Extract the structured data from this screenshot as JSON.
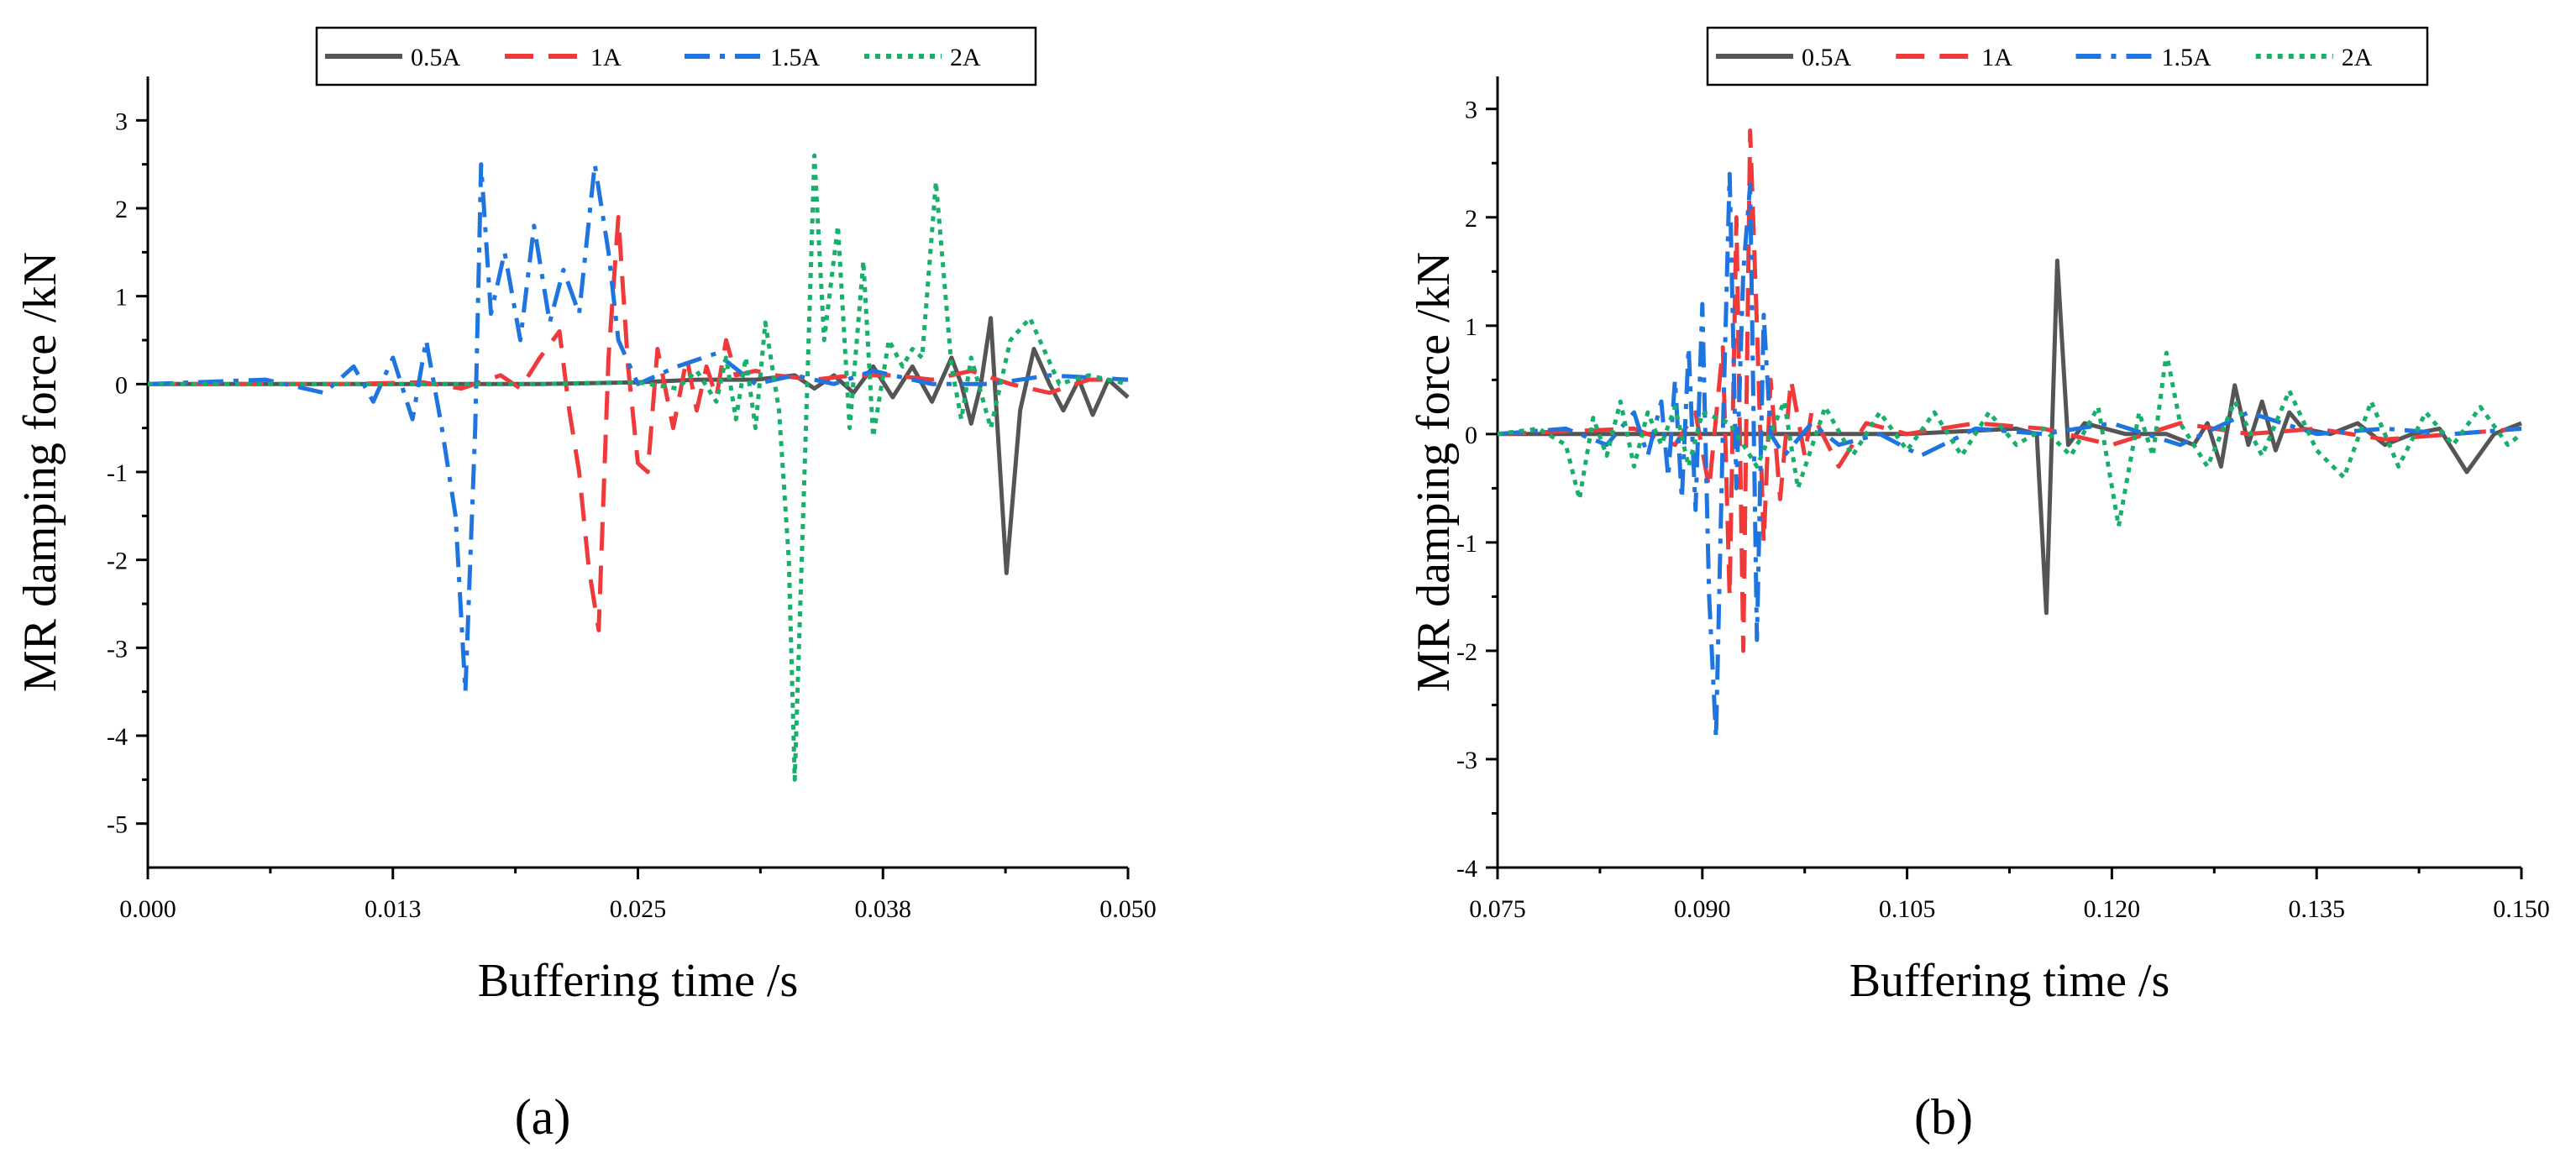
{
  "figure": {
    "panel_labels": [
      "(a)",
      "(b)"
    ]
  },
  "series_style": [
    {
      "name": "0.5A",
      "color": "#555555",
      "dash": "solid"
    },
    {
      "name": "1A",
      "color": "#f0393b",
      "dash": "dashed"
    },
    {
      "name": "1.5A",
      "color": "#1f75e0",
      "dash": "dash-dot"
    },
    {
      "name": "2A",
      "color": "#16b06a",
      "dash": "dotted"
    }
  ],
  "chart_data": [
    {
      "type": "line",
      "title": "",
      "panel": "(a)",
      "xlabel": "Buffering time /s",
      "ylabel": "MR damping force /kN",
      "xlim": [
        0.0,
        0.05
      ],
      "ylim": [
        -5.5,
        3.5
      ],
      "xticks": [
        0.0,
        0.0125,
        0.025,
        0.0375,
        0.05
      ],
      "xtick_labels": [
        "0.000",
        "0.013",
        "0.025",
        "0.038",
        "0.050"
      ],
      "yticks": [
        -5,
        -4,
        -3,
        -2,
        -1,
        0,
        1,
        2,
        3
      ],
      "ytick_labels": [
        "-5",
        "-4",
        "-3",
        "-2",
        "-1",
        "0",
        "1",
        "2",
        "3"
      ],
      "legend": [
        "0.5A",
        "1A",
        "1.5A",
        "2A"
      ],
      "legend_position": "top-center",
      "series": [
        {
          "name": "0.5A",
          "x": [
            0.0,
            0.005,
            0.01,
            0.015,
            0.02,
            0.025,
            0.028,
            0.031,
            0.033,
            0.034,
            0.035,
            0.036,
            0.037,
            0.038,
            0.039,
            0.04,
            0.041,
            0.0415,
            0.042,
            0.0425,
            0.043,
            0.0438,
            0.0445,
            0.0452,
            0.046,
            0.0467,
            0.0475,
            0.0482,
            0.049,
            0.05
          ],
          "y": [
            0,
            0,
            0,
            0,
            0,
            0.02,
            0.05,
            0.05,
            0.1,
            -0.05,
            0.1,
            -0.1,
            0.2,
            -0.15,
            0.2,
            -0.2,
            0.3,
            0.0,
            -0.45,
            0.0,
            0.75,
            -2.15,
            -0.3,
            0.4,
            0.0,
            -0.3,
            0.05,
            -0.35,
            0.05,
            -0.15
          ]
        },
        {
          "name": "1A",
          "x": [
            0.0,
            0.01,
            0.014,
            0.016,
            0.018,
            0.019,
            0.02,
            0.021,
            0.0215,
            0.022,
            0.0225,
            0.023,
            0.0235,
            0.024,
            0.0245,
            0.025,
            0.0255,
            0.026,
            0.0268,
            0.0275,
            0.028,
            0.0285,
            0.029,
            0.0295,
            0.03,
            0.031,
            0.032,
            0.034,
            0.036,
            0.038,
            0.04,
            0.042,
            0.044,
            0.046,
            0.048,
            0.05
          ],
          "y": [
            0,
            0,
            0.02,
            -0.05,
            0.1,
            -0.05,
            0.3,
            0.6,
            -0.3,
            -1.0,
            -2.1,
            -2.8,
            0.3,
            1.9,
            0.2,
            -0.9,
            -1.0,
            0.4,
            -0.5,
            0.3,
            -0.3,
            0.2,
            -0.15,
            0.5,
            0.1,
            0.15,
            0.1,
            0.05,
            0.1,
            0.1,
            0.05,
            0.15,
            0.0,
            -0.1,
            0.05,
            0.05
          ]
        },
        {
          "name": "1.5A",
          "x": [
            0.0,
            0.006,
            0.009,
            0.0105,
            0.0115,
            0.0125,
            0.0135,
            0.0142,
            0.015,
            0.0157,
            0.0162,
            0.0167,
            0.017,
            0.0175,
            0.0182,
            0.019,
            0.0197,
            0.0205,
            0.0212,
            0.022,
            0.0228,
            0.0235,
            0.024,
            0.025,
            0.027,
            0.029,
            0.031,
            0.033,
            0.035,
            0.037,
            0.04,
            0.043,
            0.046,
            0.05
          ],
          "y": [
            0,
            0.05,
            -0.1,
            0.2,
            -0.2,
            0.3,
            -0.4,
            0.5,
            -0.5,
            -1.5,
            -3.5,
            -0.5,
            2.5,
            0.8,
            1.5,
            0.5,
            1.8,
            0.7,
            1.3,
            0.8,
            2.5,
            1.5,
            0.5,
            0.0,
            0.2,
            0.35,
            0.0,
            0.1,
            0.0,
            0.15,
            0.0,
            0.0,
            0.1,
            0.05
          ]
        },
        {
          "name": "2A",
          "x": [
            0.0,
            0.01,
            0.02,
            0.025,
            0.027,
            0.028,
            0.029,
            0.0295,
            0.03,
            0.0305,
            0.031,
            0.0315,
            0.0322,
            0.0327,
            0.033,
            0.0335,
            0.034,
            0.0345,
            0.0352,
            0.0358,
            0.0365,
            0.037,
            0.0378,
            0.0385,
            0.039,
            0.0395,
            0.0402,
            0.041,
            0.0415,
            0.042,
            0.043,
            0.044,
            0.045,
            0.0465,
            0.048,
            0.05
          ],
          "y": [
            0,
            0,
            0,
            0.02,
            -0.05,
            0.15,
            -0.2,
            0.3,
            -0.4,
            0.3,
            -0.5,
            0.7,
            -0.3,
            -2.0,
            -4.5,
            -1.0,
            2.6,
            0.5,
            1.8,
            -0.5,
            1.4,
            -0.6,
            0.5,
            0.2,
            0.4,
            0.3,
            2.3,
            0.2,
            -0.4,
            0.3,
            -0.5,
            0.5,
            0.75,
            0.0,
            0.1,
            0.0
          ]
        }
      ]
    },
    {
      "type": "line",
      "title": "",
      "panel": "(b)",
      "xlabel": "Buffering time /s",
      "ylabel": "MR damping force /kN",
      "xlim": [
        0.075,
        0.15
      ],
      "ylim": [
        -4,
        3.3
      ],
      "xticks": [
        0.075,
        0.09,
        0.105,
        0.12,
        0.135,
        0.15
      ],
      "xtick_labels": [
        "0.075",
        "0.090",
        "0.105",
        "0.120",
        "0.135",
        "0.150"
      ],
      "yticks": [
        -4,
        -3,
        -2,
        -1,
        0,
        1,
        2,
        3
      ],
      "ytick_labels": [
        "-4",
        "-3",
        "-2",
        "-1",
        "0",
        "1",
        "2",
        "3"
      ],
      "legend": [
        "0.5A",
        "1A",
        "1.5A",
        "2A"
      ],
      "legend_position": "top-center",
      "series": [
        {
          "name": "0.5A",
          "x": [
            0.075,
            0.085,
            0.095,
            0.105,
            0.113,
            0.1145,
            0.1152,
            0.116,
            0.1168,
            0.118,
            0.121,
            0.124,
            0.126,
            0.127,
            0.128,
            0.129,
            0.13,
            0.131,
            0.132,
            0.133,
            0.134,
            0.136,
            0.138,
            0.14,
            0.142,
            0.144,
            0.146,
            0.148,
            0.15
          ],
          "y": [
            0,
            0,
            0,
            0,
            0.05,
            0.0,
            -1.65,
            1.6,
            -0.1,
            0.1,
            0.0,
            0.0,
            -0.1,
            0.1,
            -0.3,
            0.45,
            -0.1,
            0.3,
            -0.15,
            0.2,
            0.05,
            0.0,
            0.1,
            -0.1,
            0.0,
            0.05,
            -0.35,
            0.0,
            0.1
          ]
        },
        {
          "name": "1A",
          "x": [
            0.075,
            0.085,
            0.088,
            0.0895,
            0.0905,
            0.0915,
            0.092,
            0.0925,
            0.093,
            0.0935,
            0.094,
            0.0945,
            0.095,
            0.0957,
            0.0965,
            0.0975,
            0.098,
            0.1,
            0.102,
            0.105,
            0.11,
            0.115,
            0.12,
            0.125,
            0.13,
            0.135,
            0.14,
            0.145,
            0.15
          ],
          "y": [
            0,
            0.05,
            -0.1,
            0.2,
            -0.5,
            0.8,
            -1.5,
            2.0,
            -2.0,
            2.8,
            1.0,
            -1.0,
            0.5,
            -0.6,
            0.5,
            -0.2,
            0.2,
            -0.3,
            0.1,
            0.0,
            0.1,
            0.05,
            -0.1,
            0.1,
            0.0,
            0.05,
            -0.05,
            0.0,
            0.05
          ]
        },
        {
          "name": "1.5A",
          "x": [
            0.075,
            0.08,
            0.083,
            0.085,
            0.086,
            0.087,
            0.0875,
            0.088,
            0.0885,
            0.089,
            0.0895,
            0.09,
            0.0905,
            0.091,
            0.0915,
            0.092,
            0.0925,
            0.093,
            0.0935,
            0.094,
            0.0945,
            0.095,
            0.096,
            0.098,
            0.1,
            0.103,
            0.106,
            0.11,
            0.115,
            0.12,
            0.125,
            0.13,
            0.135,
            0.14,
            0.145,
            0.15
          ],
          "y": [
            0,
            0.05,
            -0.1,
            0.2,
            -0.2,
            0.3,
            -0.4,
            0.5,
            -0.6,
            0.8,
            -0.7,
            1.2,
            -1.5,
            -2.8,
            0.0,
            2.4,
            -0.5,
            1.5,
            2.3,
            -1.9,
            1.1,
            0.0,
            -0.2,
            0.1,
            -0.1,
            0.0,
            -0.2,
            0.05,
            0.0,
            0.1,
            -0.1,
            0.2,
            0.0,
            0.05,
            0.0,
            0.05
          ]
        },
        {
          "name": "2A",
          "x": [
            0.075,
            0.078,
            0.08,
            0.081,
            0.082,
            0.083,
            0.084,
            0.085,
            0.086,
            0.087,
            0.088,
            0.089,
            0.09,
            0.092,
            0.094,
            0.096,
            0.097,
            0.099,
            0.101,
            0.103,
            0.105,
            0.107,
            0.109,
            0.111,
            0.113,
            0.115,
            0.117,
            0.119,
            0.1205,
            0.122,
            0.123,
            0.124,
            0.125,
            0.127,
            0.129,
            0.131,
            0.133,
            0.135,
            0.137,
            0.139,
            0.141,
            0.143,
            0.145,
            0.147,
            0.149,
            0.15
          ],
          "y": [
            0,
            0.05,
            -0.1,
            -0.6,
            0.15,
            -0.2,
            0.3,
            -0.3,
            0.2,
            -0.1,
            0.25,
            -0.3,
            0.2,
            0.1,
            -0.3,
            0.3,
            -0.5,
            0.25,
            -0.2,
            0.2,
            -0.15,
            0.2,
            -0.2,
            0.2,
            -0.1,
            0.05,
            -0.2,
            0.25,
            -0.85,
            0.2,
            -0.2,
            0.75,
            0.1,
            -0.3,
            0.3,
            -0.2,
            0.4,
            -0.15,
            -0.4,
            0.3,
            -0.3,
            0.2,
            -0.1,
            0.25,
            -0.1,
            0.0
          ]
        }
      ]
    }
  ]
}
